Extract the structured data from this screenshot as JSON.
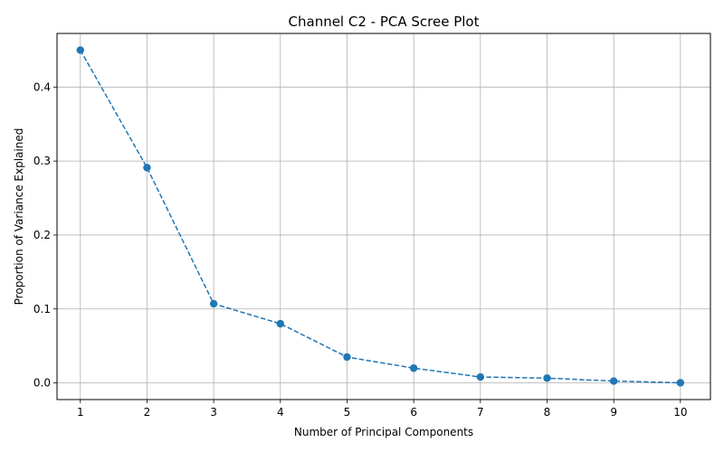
{
  "chart_data": {
    "type": "line",
    "title": "Channel C2 - PCA Scree Plot",
    "xlabel": "Number of Principal Components",
    "ylabel": "Proportion of Variance Explained",
    "x": [
      1,
      2,
      3,
      4,
      5,
      6,
      7,
      8,
      9,
      10
    ],
    "y": [
      0.45,
      0.291,
      0.107,
      0.08,
      0.035,
      0.02,
      0.008,
      0.0065,
      0.0025,
      0.0002
    ],
    "xticks": [
      "1",
      "2",
      "3",
      "4",
      "5",
      "6",
      "7",
      "8",
      "9",
      "10"
    ],
    "yticks": [
      "0.0",
      "0.1",
      "0.2",
      "0.3",
      "0.4"
    ],
    "xlim": [
      0.65,
      10.45
    ],
    "ylim": [
      -0.0225,
      0.4725
    ],
    "grid": true,
    "line_style": "dashed",
    "marker": "circle",
    "color": "#1f77b4",
    "grid_color": "#b0b0b0"
  }
}
